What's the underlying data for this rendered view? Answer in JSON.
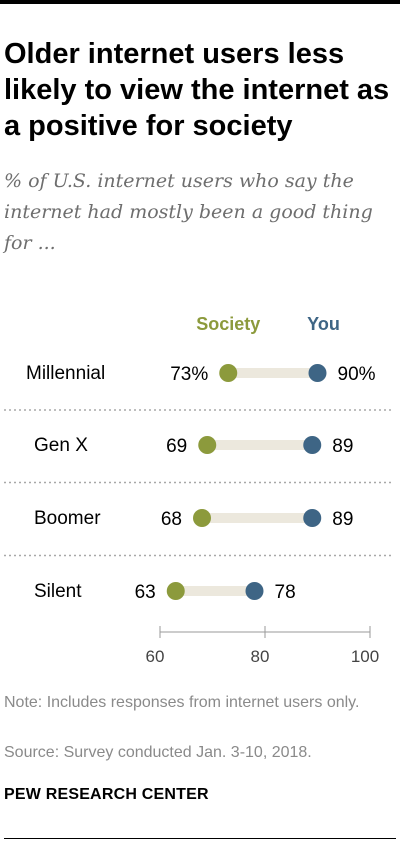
{
  "title": "Older internet users less likely to view the internet as a positive for society",
  "subtitle": "% of U.S. internet users who say the internet had mostly been a good thing for ...",
  "note": "Note: Includes responses from internet users only.",
  "source": "Source: Survey conducted Jan. 3-10, 2018.",
  "brand": "PEW RESEARCH CENTER",
  "colors": {
    "society": "#8c9a3c",
    "you": "#3e6585",
    "connector": "#ece8dd",
    "divider": "#a8a8a8",
    "axis": "#9a9a9a"
  },
  "chart_data": {
    "type": "dot-plot",
    "categories": [
      "Millennial",
      "Gen X",
      "Boomer",
      "Silent"
    ],
    "series": [
      {
        "name": "Society",
        "values": [
          73,
          69,
          68,
          63
        ],
        "labels": [
          "73%",
          "69",
          "68",
          "63"
        ]
      },
      {
        "name": "You",
        "values": [
          90,
          89,
          89,
          78
        ],
        "labels": [
          "90%",
          "89",
          "89",
          "78"
        ]
      }
    ],
    "xlim": [
      60,
      100
    ],
    "xticks": [
      60,
      80,
      100
    ],
    "xtick_labels": [
      "60",
      "80",
      "100"
    ],
    "grid": false,
    "legend": "top"
  }
}
